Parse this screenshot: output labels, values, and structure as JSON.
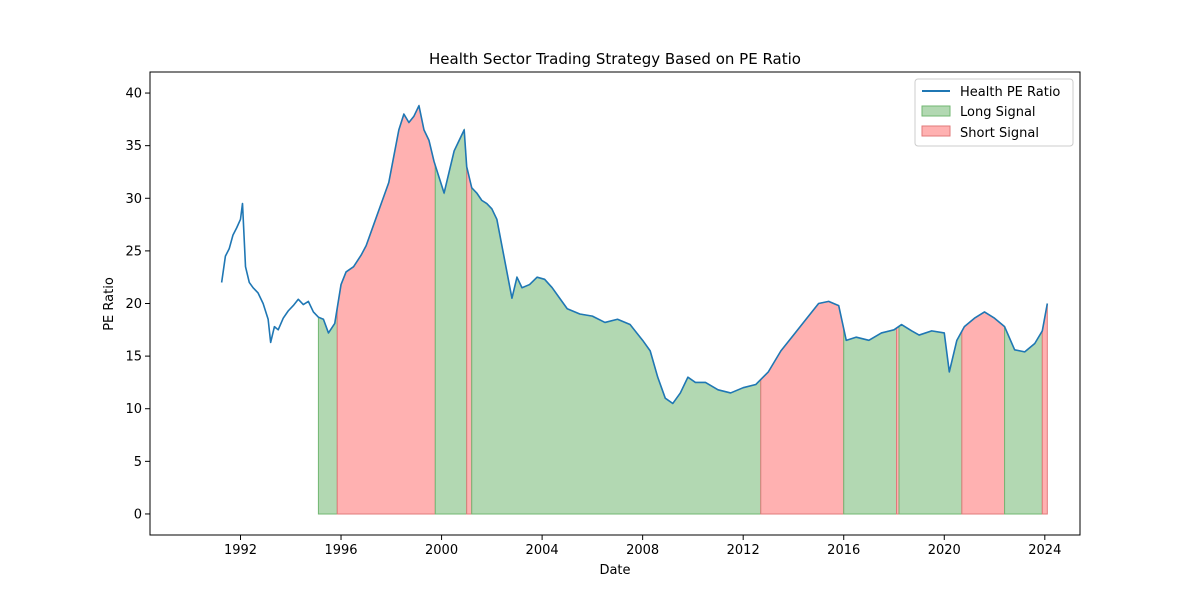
{
  "chart_data": {
    "type": "area",
    "title": "Health Sector Trading Strategy Based on PE Ratio",
    "xlabel": "Date",
    "ylabel": "PE Ratio",
    "xlim": [
      1988.4,
      2025.4
    ],
    "ylim": [
      -2.0,
      42.0
    ],
    "xticks": [
      1992,
      1996,
      2000,
      2004,
      2008,
      2012,
      2016,
      2020,
      2024
    ],
    "yticks": [
      0,
      5,
      10,
      15,
      20,
      25,
      30,
      35,
      40
    ],
    "grid": false,
    "legend_position": "top-right",
    "colors": {
      "line": "#1f77b4",
      "long_fill": "#b2d8b2",
      "long_edge": "#72b772",
      "short_fill": "#ffb1b1",
      "short_edge": "#e07a7a"
    },
    "series": [
      {
        "name": "Health PE Ratio",
        "x": [
          1991.25,
          1991.4,
          1991.55,
          1991.7,
          1991.85,
          1992.0,
          1992.08,
          1992.2,
          1992.35,
          1992.5,
          1992.7,
          1992.9,
          1993.1,
          1993.2,
          1993.35,
          1993.5,
          1993.7,
          1993.9,
          1994.1,
          1994.3,
          1994.5,
          1994.7,
          1994.9,
          1995.1,
          1995.3,
          1995.5,
          1995.75,
          1996.0,
          1996.2,
          1996.5,
          1996.8,
          1997.0,
          1997.3,
          1997.6,
          1997.9,
          1998.1,
          1998.3,
          1998.5,
          1998.7,
          1998.9,
          1999.1,
          1999.3,
          1999.5,
          1999.7,
          1999.9,
          2000.1,
          2000.3,
          2000.5,
          2000.7,
          2000.9,
          2001.0,
          2001.2,
          2001.4,
          2001.6,
          2001.8,
          2002.0,
          2002.2,
          2002.4,
          2002.6,
          2002.8,
          2003.0,
          2003.2,
          2003.5,
          2003.8,
          2004.1,
          2004.4,
          2004.7,
          2005.0,
          2005.5,
          2006.0,
          2006.5,
          2007.0,
          2007.5,
          2008.0,
          2008.3,
          2008.6,
          2008.9,
          2009.2,
          2009.5,
          2009.8,
          2010.1,
          2010.5,
          2011.0,
          2011.5,
          2012.0,
          2012.5,
          2013.0,
          2013.5,
          2014.0,
          2014.5,
          2015.0,
          2015.4,
          2015.8,
          2016.1,
          2016.5,
          2017.0,
          2017.5,
          2018.0,
          2018.3,
          2018.7,
          2019.0,
          2019.5,
          2020.0,
          2020.2,
          2020.5,
          2020.8,
          2021.2,
          2021.6,
          2022.0,
          2022.4,
          2022.8,
          2023.2,
          2023.6,
          2023.9,
          2024.1
        ],
        "y": [
          22.0,
          24.5,
          25.2,
          26.5,
          27.2,
          28.0,
          29.5,
          23.5,
          22.0,
          21.5,
          21.0,
          20.0,
          18.5,
          16.3,
          17.8,
          17.5,
          18.6,
          19.3,
          19.8,
          20.4,
          19.9,
          20.2,
          19.2,
          18.7,
          18.5,
          17.2,
          18.1,
          21.8,
          23.0,
          23.5,
          24.6,
          25.5,
          27.5,
          29.5,
          31.5,
          34.0,
          36.5,
          38.0,
          37.2,
          37.8,
          38.8,
          36.5,
          35.5,
          33.5,
          32.0,
          30.5,
          32.5,
          34.5,
          35.5,
          36.5,
          33.0,
          31.0,
          30.5,
          29.8,
          29.5,
          29.0,
          28.0,
          25.5,
          23.0,
          20.5,
          22.5,
          21.5,
          21.8,
          22.5,
          22.3,
          21.5,
          20.5,
          19.5,
          19.0,
          18.8,
          18.2,
          18.5,
          18.0,
          16.5,
          15.5,
          13.0,
          11.0,
          10.5,
          11.5,
          13.0,
          12.5,
          12.5,
          11.8,
          11.5,
          12.0,
          12.3,
          13.5,
          15.5,
          17.0,
          18.5,
          20.0,
          20.2,
          19.8,
          16.5,
          16.8,
          16.5,
          17.2,
          17.5,
          18.0,
          17.4,
          17.0,
          17.4,
          17.2,
          13.5,
          16.5,
          17.8,
          18.6,
          19.2,
          18.6,
          17.8,
          15.6,
          15.4,
          16.2,
          17.4,
          20.0
        ]
      }
    ],
    "signals": [
      {
        "name": "Long Signal",
        "start": 1995.1,
        "end": 1995.85
      },
      {
        "name": "Short Signal",
        "start": 1995.85,
        "end": 1999.75
      },
      {
        "name": "Long Signal",
        "start": 1999.75,
        "end": 2001.0
      },
      {
        "name": "Short Signal",
        "start": 2001.0,
        "end": 2001.2
      },
      {
        "name": "Long Signal",
        "start": 2001.2,
        "end": 2012.7
      },
      {
        "name": "Short Signal",
        "start": 2012.7,
        "end": 2016.0
      },
      {
        "name": "Long Signal",
        "start": 2016.0,
        "end": 2018.1
      },
      {
        "name": "Short Signal",
        "start": 2018.1,
        "end": 2018.2
      },
      {
        "name": "Long Signal",
        "start": 2018.2,
        "end": 2020.7
      },
      {
        "name": "Short Signal",
        "start": 2020.7,
        "end": 2022.4
      },
      {
        "name": "Long Signal",
        "start": 2022.4,
        "end": 2023.9
      },
      {
        "name": "Short Signal",
        "start": 2023.9,
        "end": 2024.1
      }
    ],
    "legend": [
      "Health PE Ratio",
      "Long Signal",
      "Short Signal"
    ]
  }
}
